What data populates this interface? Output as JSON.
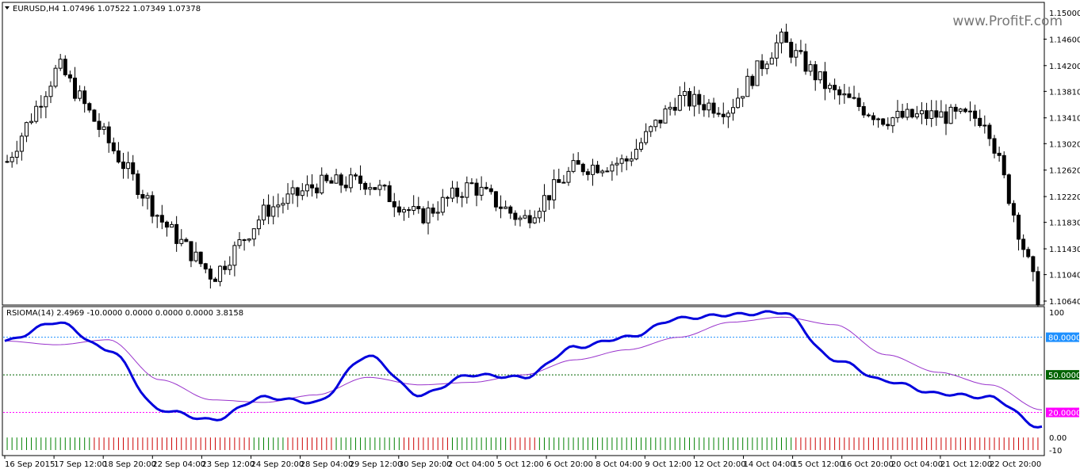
{
  "main_chart": {
    "header": "EURUSD,H4  1.07496 1.07522 1.07349 1.07378",
    "price_scale": [
      "1.14600",
      "1.14200",
      "1.13810",
      "1.13410",
      "1.13020",
      "1.12620",
      "1.12220",
      "1.11830",
      "1.11430",
      "1.11040",
      "1.10640"
    ],
    "top_scale_label": "1.15000",
    "watermark": "www.ProfitF.com",
    "colors": {
      "bull_body": "#ffffff",
      "bear_body": "#000000",
      "wick": "#000000"
    }
  },
  "indicator": {
    "header": "RSIOMA(14) 2.4969 -10.0000 0.0000 0.0000 0.0000 3.8158",
    "scale": [
      "100",
      "0.00",
      "-10"
    ],
    "levels": [
      {
        "label": "80.0000",
        "color": "#1e90ff"
      },
      {
        "label": "50.0000",
        "color": "#006400"
      },
      {
        "label": "20.0000",
        "color": "#ff00ff"
      }
    ],
    "colors": {
      "rsi_line": "#0000dd",
      "ma_line": "#9933cc",
      "hist_up": "#008000",
      "hist_down": "#cc0000"
    }
  },
  "time_axis": [
    "16 Sep 2015",
    "17 Sep 12:00",
    "18 Sep 20:00",
    "22 Sep 04:00",
    "23 Sep 12:00",
    "24 Sep 20:00",
    "28 Sep 04:00",
    "29 Sep 12:00",
    "30 Sep 20:00",
    "2 Oct 04:00",
    "5 Oct 12:00",
    "6 Oct 20:00",
    "8 Oct 04:00",
    "9 Oct 12:00",
    "12 Oct 20:00",
    "14 Oct 04:00",
    "15 Oct 12:00",
    "16 Oct 20:00",
    "20 Oct 04:00",
    "21 Oct 12:00",
    "22 Oct 20:00"
  ],
  "chart_data": [
    {
      "type": "candlestick",
      "title": "EURUSD,H4",
      "x": [
        "16 Sep 2015",
        "17 Sep 12:00",
        "18 Sep 20:00",
        "22 Sep 04:00",
        "23 Sep 12:00",
        "24 Sep 20:00",
        "28 Sep 04:00",
        "29 Sep 12:00",
        "30 Sep 20:00",
        "2 Oct 04:00",
        "5 Oct 12:00",
        "6 Oct 20:00",
        "8 Oct 04:00",
        "9 Oct 12:00",
        "12 Oct 20:00",
        "14 Oct 04:00",
        "15 Oct 12:00",
        "16 Oct 20:00",
        "20 Oct 04:00",
        "21 Oct 12:00",
        "22 Oct 20:00"
      ],
      "close": [
        1.1275,
        1.142,
        1.13,
        1.1185,
        1.11,
        1.12,
        1.124,
        1.1245,
        1.119,
        1.124,
        1.1185,
        1.1265,
        1.1275,
        1.137,
        1.1355,
        1.146,
        1.138,
        1.134,
        1.1345,
        1.134,
        1.107
      ],
      "ylim": [
        1.1064,
        1.15
      ]
    },
    {
      "type": "line",
      "title": "RSIOMA(14)",
      "x": [
        "16 Sep 2015",
        "17 Sep 12:00",
        "18 Sep 20:00",
        "22 Sep 04:00",
        "23 Sep 12:00",
        "24 Sep 20:00",
        "28 Sep 04:00",
        "29 Sep 12:00",
        "30 Sep 20:00",
        "2 Oct 04:00",
        "5 Oct 12:00",
        "6 Oct 20:00",
        "8 Oct 04:00",
        "9 Oct 12:00",
        "12 Oct 20:00",
        "14 Oct 04:00",
        "15 Oct 12:00",
        "16 Oct 20:00",
        "20 Oct 04:00",
        "21 Oct 12:00",
        "22 Oct 20:00"
      ],
      "series": [
        {
          "name": "RSIOMA",
          "values": [
            77,
            92,
            70,
            22,
            14,
            32,
            28,
            65,
            34,
            50,
            48,
            72,
            80,
            95,
            98,
            100,
            62,
            45,
            35,
            32,
            8
          ]
        },
        {
          "name": "MA",
          "values": [
            77,
            74,
            78,
            46,
            30,
            28,
            34,
            48,
            42,
            44,
            50,
            62,
            70,
            80,
            92,
            96,
            90,
            66,
            52,
            42,
            22
          ]
        }
      ],
      "levels": [
        80,
        50,
        20
      ],
      "ylim": [
        -10,
        100
      ]
    }
  ]
}
